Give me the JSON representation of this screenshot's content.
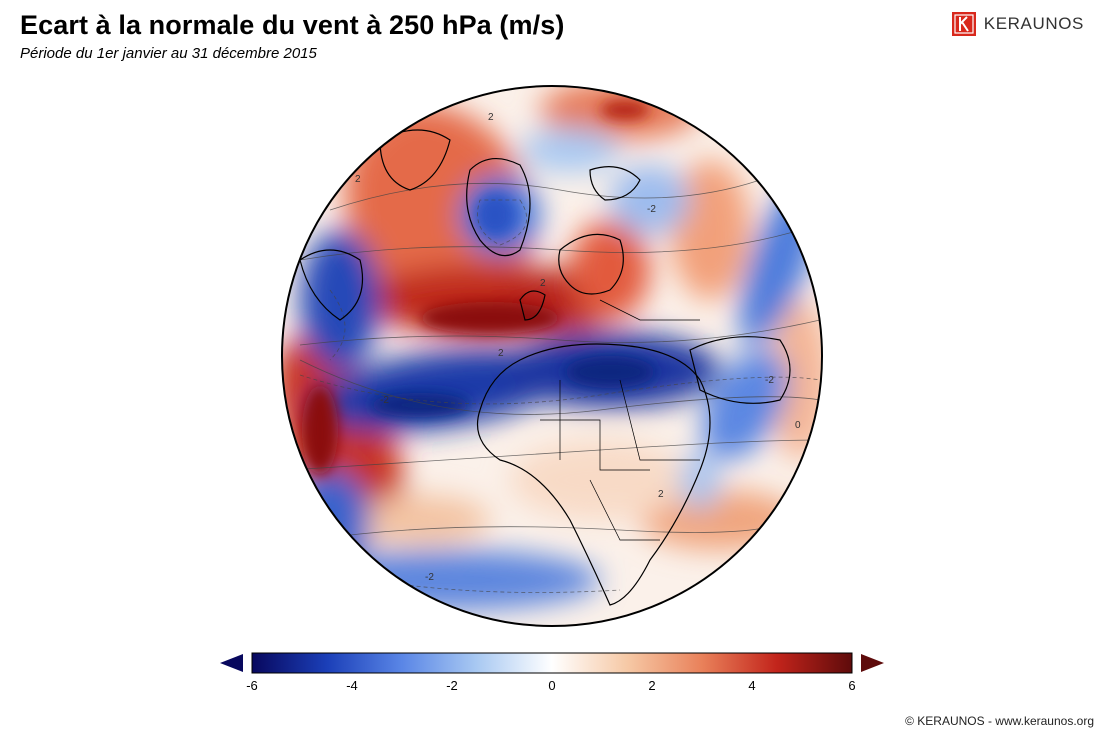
{
  "header": {
    "title": "Ecart à la normale du vent à 250 hPa (m/s)",
    "subtitle": "Période du 1er janvier au 31 décembre 2015"
  },
  "brand": {
    "name": "KERAUNOS",
    "logo_icon": "keraunos-k-logo",
    "logo_color": "#d8281c"
  },
  "colorbar": {
    "min": -6,
    "max": 6,
    "ticks": [
      "-6",
      "-4",
      "-2",
      "0",
      "2",
      "4",
      "6"
    ],
    "stops": [
      "#08085e",
      "#1b3fb8",
      "#5a86e6",
      "#a9c9f2",
      "#ffffff",
      "#f6c9a6",
      "#e9815a",
      "#c2241b",
      "#5e0b0b"
    ],
    "extend_low_color": "#08085e",
    "extend_high_color": "#5e0b0b"
  },
  "map": {
    "projection": "orthographic",
    "contour_labels": [
      "2",
      "2",
      "2",
      "-2",
      "-2",
      "-2",
      "0",
      "2",
      "-2",
      "2"
    ]
  },
  "footer": {
    "copyright": "© KERAUNOS - www.keraunos.org"
  }
}
